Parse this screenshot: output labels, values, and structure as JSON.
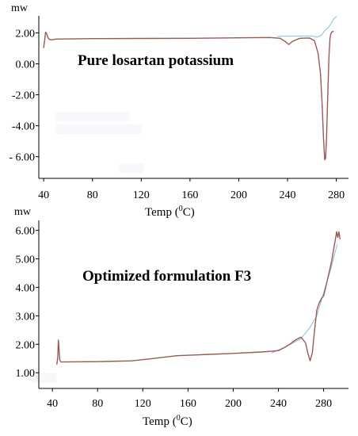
{
  "chart_data": [
    {
      "type": "line",
      "title": "Pure losartan potassium",
      "ylabel": "mw",
      "xlabel": "Temp (⁰C)",
      "xlabel_parts": {
        "pre": "Temp (",
        "sup": "0",
        "post": "C)"
      },
      "xlim": [
        36,
        290
      ],
      "ylim": [
        -7.4,
        3.1
      ],
      "xticks": [
        40,
        80,
        120,
        160,
        200,
        240,
        280
      ],
      "yticks": [
        2.0,
        0.0,
        -2.0,
        -4.0,
        -6.0
      ],
      "ytick_labels": [
        "2.00",
        "0.00",
        "-2.00",
        "-4.00",
        "- 6.00"
      ],
      "grid": false,
      "series": [
        {
          "color": "#9a5a52",
          "x": [
            40,
            40.8,
            41.6,
            42.4,
            43.4,
            44.6,
            46,
            50,
            80,
            120,
            160,
            200,
            225,
            234,
            238,
            241,
            244,
            250,
            258,
            262,
            265,
            267,
            268.5,
            269.5,
            270.5,
            271.2,
            272,
            273,
            274,
            274.8,
            275.5,
            276.3,
            277.5
          ],
          "y": [
            1.05,
            1.55,
            2.05,
            1.95,
            1.7,
            1.58,
            1.55,
            1.6,
            1.63,
            1.64,
            1.65,
            1.68,
            1.7,
            1.65,
            1.45,
            1.25,
            1.45,
            1.65,
            1.67,
            1.5,
            0.7,
            -0.6,
            -2.8,
            -4.8,
            -6.2,
            -6.1,
            -4.8,
            -2.0,
            0.5,
            1.6,
            1.95,
            2.05,
            2.1
          ]
        },
        {
          "color": "#8cc8d8",
          "x": [
            232,
            260,
            264,
            268,
            270,
            274,
            278,
            280
          ],
          "y": [
            1.78,
            1.8,
            1.72,
            1.85,
            2.1,
            2.4,
            2.9,
            3.05
          ]
        }
      ]
    },
    {
      "type": "line",
      "title": "Optimized formulation F3",
      "ylabel": "mw",
      "xlabel": "Temp (⁰C)",
      "xlabel_parts": {
        "pre": "Temp (",
        "sup": "0",
        "post": "C)"
      },
      "xlim": [
        28,
        302
      ],
      "ylim": [
        0.45,
        6.35
      ],
      "xticks": [
        40,
        80,
        120,
        160,
        200,
        240,
        280
      ],
      "yticks": [
        1.0,
        2.0,
        3.0,
        4.0,
        5.0,
        6.0
      ],
      "ytick_labels": [
        "1.00",
        "2.00",
        "3.00",
        "4.00",
        "5.00",
        "6.00"
      ],
      "grid": false,
      "series": [
        {
          "color": "#9a5a52",
          "x": [
            44,
            44.8,
            45.3,
            45.8,
            46.5,
            47.5,
            50,
            80,
            110,
            125,
            150,
            175,
            200,
            225,
            235,
            240,
            245,
            250,
            255,
            260,
            264,
            266,
            268,
            270,
            272,
            274,
            276,
            278,
            280,
            283,
            287,
            290,
            291.5,
            292.5,
            293.5,
            294.5
          ],
          "y": [
            1.3,
            1.55,
            2.15,
            1.9,
            1.45,
            1.38,
            1.38,
            1.39,
            1.42,
            1.48,
            1.6,
            1.64,
            1.68,
            1.73,
            1.76,
            1.78,
            1.88,
            2.0,
            2.15,
            2.25,
            2.05,
            1.7,
            1.42,
            1.7,
            2.5,
            3.2,
            3.45,
            3.6,
            3.7,
            4.2,
            4.9,
            5.6,
            5.95,
            5.75,
            5.95,
            5.7
          ]
        },
        {
          "color": "#8cc8d8",
          "x": [
            234,
            246,
            260,
            268,
            274,
            278,
            286,
            292
          ],
          "y": [
            1.7,
            1.9,
            2.2,
            2.6,
            3.0,
            3.55,
            4.6,
            5.5
          ]
        }
      ]
    }
  ]
}
